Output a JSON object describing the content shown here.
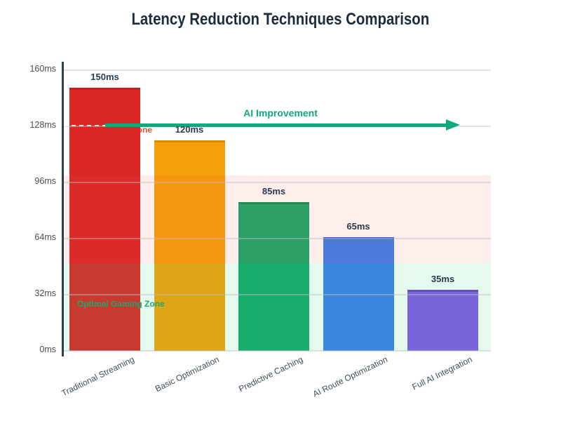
{
  "title": "Latency Reduction Techniques Comparison",
  "chart_data": {
    "type": "bar",
    "title": "Latency Reduction Techniques Comparison",
    "categories": [
      "Traditional Streaming",
      "Basic Optimization",
      "Predictive Caching",
      "AI Route Optimization",
      "Full AI Integration"
    ],
    "values": [
      150,
      120,
      85,
      65,
      35
    ],
    "value_labels": [
      "150ms",
      "120ms",
      "85ms",
      "65ms",
      "35ms"
    ],
    "bar_colors": [
      "#dc2626",
      "#f5a00b",
      "#16a96b",
      "#3d7ef0",
      "#8157e8"
    ],
    "bar_edge_colors": [
      "#bf1f1f",
      "#d98c08",
      "#0f8f58",
      "#2f66d6",
      "#6a43cc"
    ],
    "xlabel": "",
    "ylabel": "",
    "ylim": [
      0,
      160
    ],
    "ytick_values": [
      0,
      32,
      64,
      96,
      128,
      160
    ],
    "ytick_labels": [
      "0ms",
      "32ms",
      "64ms",
      "96ms",
      "128ms",
      "160ms"
    ],
    "grid": true,
    "zones": [
      {
        "name": "caution-zone",
        "from_ms": 50,
        "to_ms": 100,
        "color": "rgba(231,76,60,0.10)"
      },
      {
        "name": "optimal-zone",
        "from_ms": 0,
        "to_ms": 50,
        "color": "rgba(46,204,113,0.12)"
      }
    ],
    "annotations": {
      "ai_improvement": {
        "label": "AI Improvement",
        "color": "#10a97e",
        "y_ms": 128,
        "type": "arrow-right"
      },
      "danger": {
        "label": "Danger Zone",
        "color": "#e74c3c",
        "y_ms": 128,
        "style": "dashed-line"
      },
      "optimal": {
        "label": "Optimal Gaming Zone",
        "color": "#16aa71",
        "y_ms": 30
      }
    }
  }
}
